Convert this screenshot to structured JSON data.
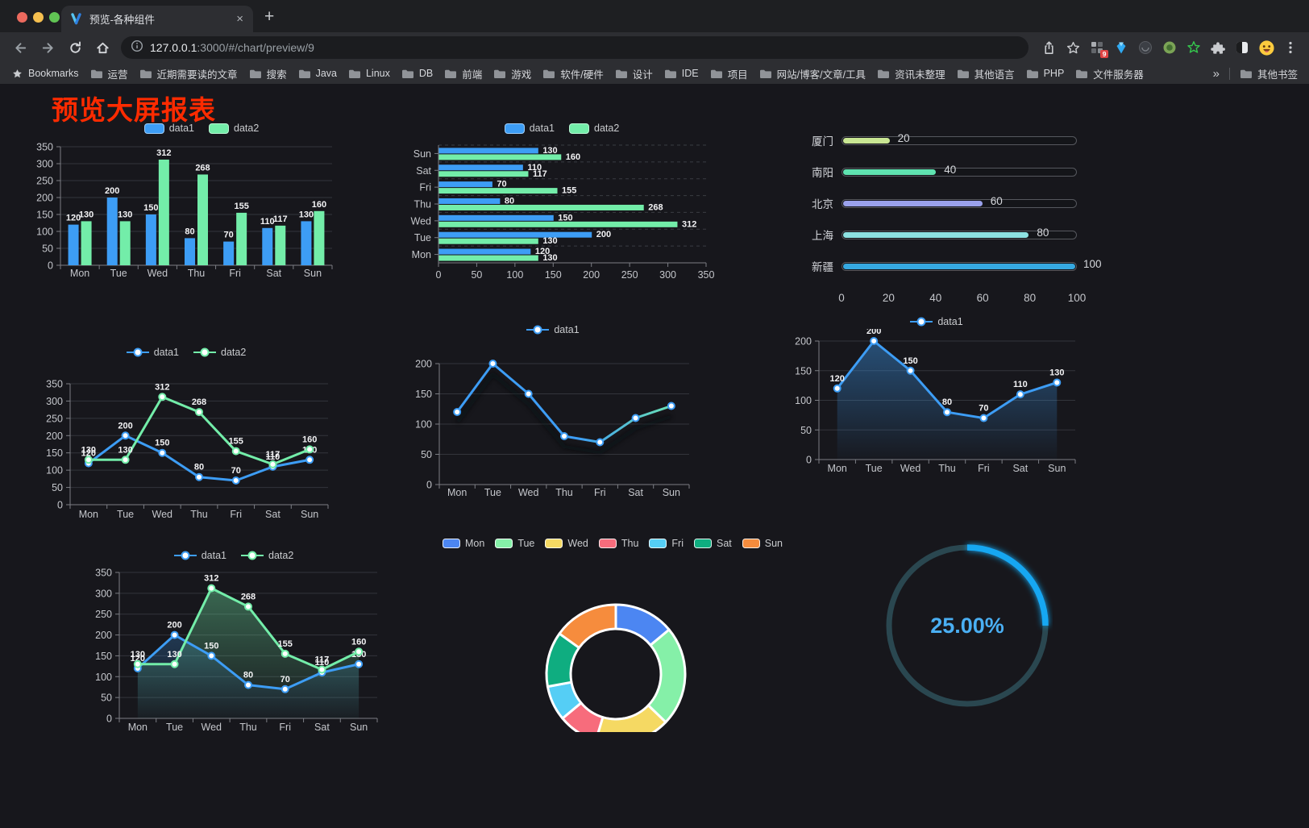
{
  "browser": {
    "window_controls": [
      "#EC6A5E",
      "#F5BF4F",
      "#61C454"
    ],
    "tab_title": "预览-各种组件",
    "tab_close": "×",
    "new_tab": "+",
    "url_host": "127.0.0.1",
    "url_rest": ":3000/#/chart/preview/9",
    "nav_icons": [
      "back-arrow",
      "forward-arrow",
      "reload",
      "home"
    ],
    "action_icons": [
      "share",
      "bookmark-star"
    ],
    "extension_icons": [
      "grid-extension",
      "gem-extension",
      "dark-circle-extension",
      "green-circle-extension",
      "green-star-extension",
      "puzzle-extensions",
      "contrast-extension"
    ],
    "extension_badge": "9",
    "profile_icon": "emoji-avatar",
    "menu_icon": "menu-dots",
    "bookmarks_label": "Bookmarks",
    "bookmark_folders": [
      "运营",
      "近期需要读的文章",
      "搜索",
      "Java",
      "Linux",
      "DB",
      "前端",
      "游戏",
      "软件/硬件",
      "设计",
      "IDE",
      "项目",
      "网站/博客/文章/工具",
      "资讯未整理",
      "其他语言",
      "PHP",
      "文件服务器"
    ],
    "bookmarks_overflow": "»",
    "other_bookmarks": "其他书签"
  },
  "page": {
    "title": "预览大屏报表",
    "title_color": "#FF2B00",
    "background": "#17171C"
  },
  "chart_data": [
    {
      "id": "bar-vertical",
      "type": "bar",
      "legend_position": "top",
      "grid": true,
      "value_labels": true,
      "categories": [
        "Mon",
        "Tue",
        "Wed",
        "Thu",
        "Fri",
        "Sat",
        "Sun"
      ],
      "series": [
        {
          "name": "data1",
          "color": "#3D9DF5",
          "values": [
            120,
            200,
            150,
            80,
            70,
            110,
            130
          ]
        },
        {
          "name": "data2",
          "color": "#73EDA9",
          "values": [
            130,
            130,
            312,
            268,
            155,
            117,
            160
          ]
        }
      ],
      "ylim": [
        0,
        350
      ],
      "ytick_step": 50
    },
    {
      "id": "bar-horizontal",
      "type": "bar",
      "orientation": "horizontal",
      "legend_position": "top",
      "value_labels": true,
      "categories": [
        "Mon",
        "Tue",
        "Wed",
        "Thu",
        "Fri",
        "Sat",
        "Sun"
      ],
      "series": [
        {
          "name": "data1",
          "color": "#3D9DF5",
          "values": [
            120,
            200,
            150,
            80,
            70,
            110,
            130
          ]
        },
        {
          "name": "data2",
          "color": "#73EDA9",
          "values": [
            130,
            130,
            312,
            268,
            155,
            117,
            160
          ]
        }
      ],
      "xlim": [
        0,
        350
      ],
      "xtick_step": 50
    },
    {
      "id": "progress-bars",
      "type": "bar",
      "subtype": "progress",
      "items": [
        {
          "label": "厦门",
          "value": 20,
          "color": "#C9E693"
        },
        {
          "label": "南阳",
          "value": 40,
          "color": "#5FE3B0"
        },
        {
          "label": "北京",
          "value": 60,
          "color": "#9AA1EC"
        },
        {
          "label": "上海",
          "value": 80,
          "color": "#8DE2E2"
        },
        {
          "label": "新疆",
          "value": 100,
          "color": "#36A9E1"
        }
      ],
      "xlim": [
        0,
        100
      ],
      "xticks": [
        0,
        20,
        40,
        60,
        80,
        100
      ]
    },
    {
      "id": "line-two-series",
      "type": "line",
      "legend_position": "top",
      "value_labels": true,
      "markers": true,
      "categories": [
        "Mon",
        "Tue",
        "Wed",
        "Thu",
        "Fri",
        "Sat",
        "Sun"
      ],
      "series": [
        {
          "name": "data1",
          "color": "#3D9DF5",
          "values": [
            120,
            200,
            150,
            80,
            70,
            110,
            130
          ]
        },
        {
          "name": "data2",
          "color": "#73EDA9",
          "values": [
            130,
            130,
            312,
            268,
            155,
            117,
            160
          ]
        }
      ],
      "ylim": [
        0,
        350
      ],
      "ytick_step": 50
    },
    {
      "id": "line-gradient",
      "type": "line",
      "legend_position": "top",
      "value_labels": false,
      "markers": true,
      "shadow": true,
      "categories": [
        "Mon",
        "Tue",
        "Wed",
        "Thu",
        "Fri",
        "Sat",
        "Sun"
      ],
      "series": [
        {
          "name": "data1",
          "color": "#3D9DF5",
          "gradient": [
            "#3D9DF5",
            "#73EDA9"
          ],
          "values": [
            120,
            200,
            150,
            80,
            70,
            110,
            130
          ]
        }
      ],
      "ylim": [
        0,
        200
      ],
      "ytick_step": 50
    },
    {
      "id": "area-single",
      "type": "area",
      "legend_position": "top",
      "value_labels": true,
      "markers": true,
      "categories": [
        "Mon",
        "Tue",
        "Wed",
        "Thu",
        "Fri",
        "Sat",
        "Sun"
      ],
      "series": [
        {
          "name": "data1",
          "color": "#3D9DF5",
          "area": true,
          "values": [
            120,
            200,
            150,
            80,
            70,
            110,
            130
          ]
        }
      ],
      "ylim": [
        0,
        200
      ],
      "ytick_step": 50
    },
    {
      "id": "area-two-series",
      "type": "area",
      "legend_position": "top",
      "value_labels": true,
      "markers": true,
      "categories": [
        "Mon",
        "Tue",
        "Wed",
        "Thu",
        "Fri",
        "Sat",
        "Sun"
      ],
      "series": [
        {
          "name": "data1",
          "color": "#3D9DF5",
          "area": true,
          "values": [
            120,
            200,
            150,
            80,
            70,
            110,
            130
          ]
        },
        {
          "name": "data2",
          "color": "#73EDA9",
          "area": true,
          "values": [
            130,
            130,
            312,
            268,
            155,
            117,
            160
          ]
        }
      ],
      "ylim": [
        0,
        350
      ],
      "ytick_step": 50
    },
    {
      "id": "donut",
      "type": "pie",
      "legend_position": "top",
      "inner_radius_ratio": 0.65,
      "border_color": "#FFFFFF",
      "items": [
        {
          "label": "Mon",
          "value": 120,
          "color": "#4C86F2"
        },
        {
          "label": "Tue",
          "value": 200,
          "color": "#85F0A8"
        },
        {
          "label": "Wed",
          "value": 150,
          "color": "#F5D963"
        },
        {
          "label": "Thu",
          "value": 80,
          "color": "#F76C7C"
        },
        {
          "label": "Fri",
          "value": 70,
          "color": "#55CEF5"
        },
        {
          "label": "Sat",
          "value": 110,
          "color": "#0FAD80"
        },
        {
          "label": "Sun",
          "value": 130,
          "color": "#F68C3D"
        }
      ]
    },
    {
      "id": "gauge",
      "type": "gauge",
      "value": 25,
      "display": "25.00%",
      "track_color": "#2A4750",
      "progress_color": "#18A7F2",
      "text_color": "#4AAFF3"
    }
  ]
}
